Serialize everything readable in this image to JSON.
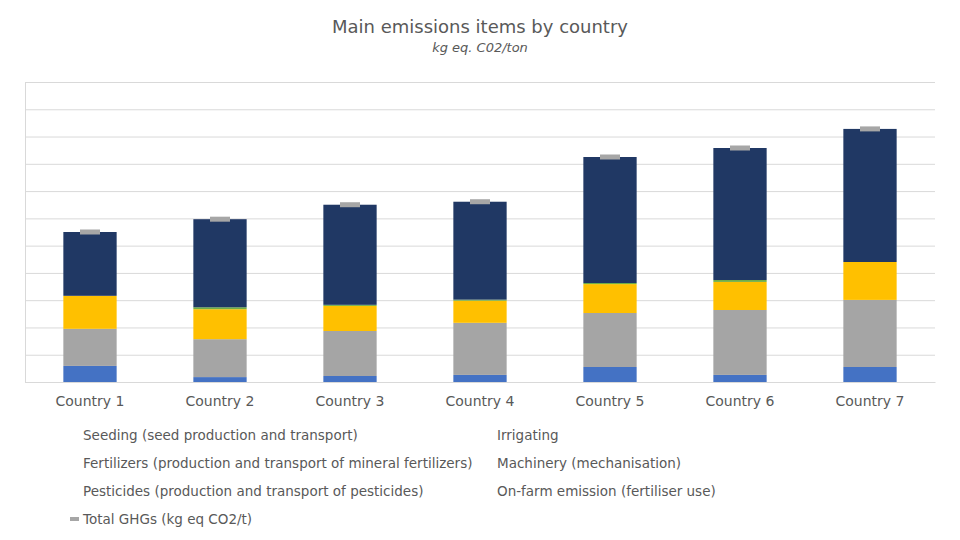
{
  "chart_data": {
    "type": "bar",
    "stacked": true,
    "title": "Main emissions items by country",
    "subtitle": "kg eq. C02/ton",
    "categories": [
      "Country 1",
      "Country 2",
      "Country 3",
      "Country 4",
      "Country 5",
      "Country 6",
      "Country 7"
    ],
    "series": [
      {
        "name": "Seeding (seed production and transport)",
        "color": "#4472C4",
        "values": [
          59,
          18,
          22,
          26,
          55,
          26,
          55
        ]
      },
      {
        "name": "Irrigating",
        "color": "#ED7D31",
        "values": [
          0,
          0,
          0,
          0,
          0,
          0,
          0
        ]
      },
      {
        "name": "Fertilizers (production and transport of mineral fertilizers)",
        "color": "#A5A5A5",
        "values": [
          136,
          139,
          165,
          191,
          198,
          238,
          246
        ]
      },
      {
        "name": "Machinery (mechanisation)",
        "color": "#FFC000",
        "values": [
          121,
          110,
          92,
          81,
          106,
          103,
          139
        ]
      },
      {
        "name": "Pesticides (production and transport of pesticides)",
        "color": "#70AD47",
        "values": [
          0,
          7,
          4,
          4,
          4,
          7,
          0
        ]
      },
      {
        "name": "On-farm emission (fertiliser use)",
        "color": "#203864",
        "values": [
          234,
          323,
          367,
          359,
          462,
          484,
          488
        ]
      },
      {
        "name": "Total GHGs (kg eq CO2/t)",
        "type": "scatter",
        "marker": "dash",
        "color": "#A6A6A6",
        "values": [
          550,
          597,
          650,
          661,
          825,
          858,
          928
        ]
      }
    ],
    "ylim": [
      0,
      1100
    ],
    "yticks": [
      0,
      100,
      200,
      300,
      400,
      500,
      600,
      700,
      800,
      900,
      1000,
      1100
    ],
    "grid": true,
    "tick_labels": "x",
    "legend": "bottom"
  }
}
